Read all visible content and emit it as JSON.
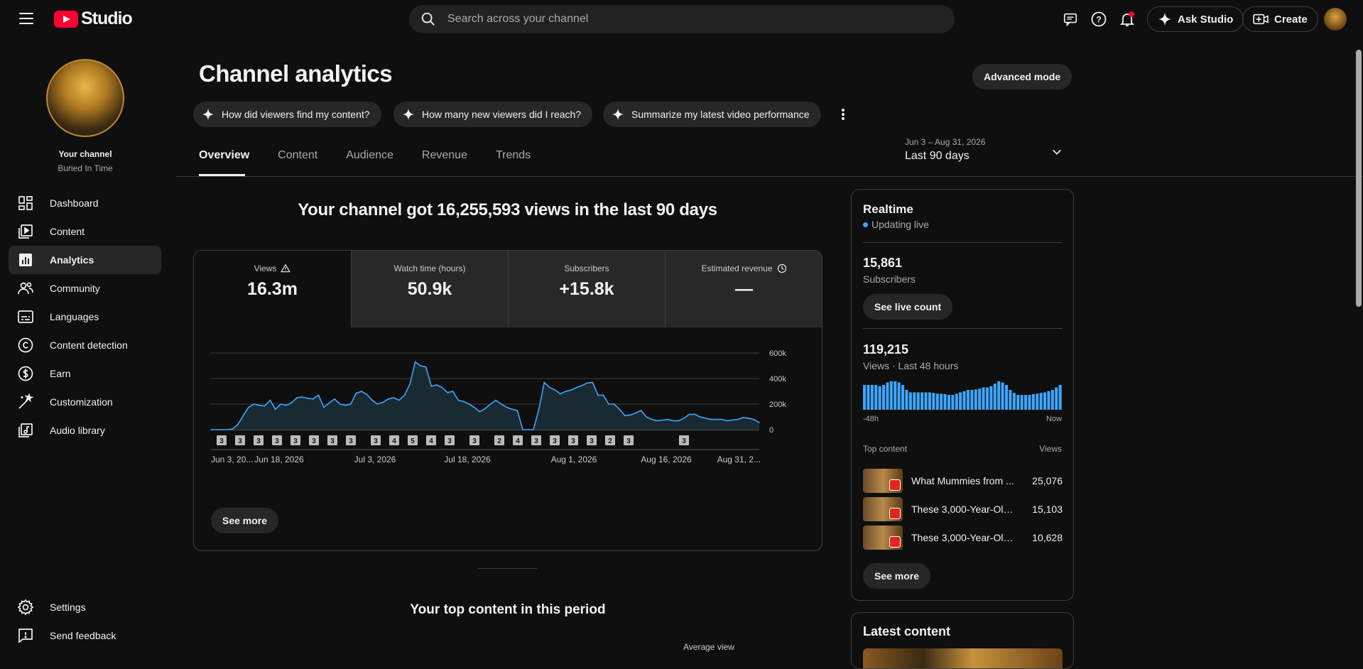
{
  "app": {
    "title": "Studio"
  },
  "search": {
    "placeholder": "Search across your channel"
  },
  "topbar": {
    "ask_label": "Ask Studio",
    "create_label": "Create"
  },
  "channel": {
    "label": "Your channel",
    "name": "Buried In Time"
  },
  "sidebar": {
    "items": [
      {
        "label": "Dashboard",
        "icon": "dashboard-icon"
      },
      {
        "label": "Content",
        "icon": "content-icon"
      },
      {
        "label": "Analytics",
        "icon": "analytics-icon",
        "active": true
      },
      {
        "label": "Community",
        "icon": "community-icon"
      },
      {
        "label": "Languages",
        "icon": "subtitles-icon"
      },
      {
        "label": "Content detection",
        "icon": "copyright-icon"
      },
      {
        "label": "Earn",
        "icon": "dollar-icon"
      },
      {
        "label": "Customization",
        "icon": "magic-wand-icon"
      },
      {
        "label": "Audio library",
        "icon": "music-library-icon"
      }
    ],
    "footer": [
      {
        "label": "Settings",
        "icon": "gear-icon"
      },
      {
        "label": "Send feedback",
        "icon": "feedback-icon"
      }
    ]
  },
  "page": {
    "title": "Channel analytics",
    "advanced_label": "Advanced mode",
    "chips": [
      "How did viewers find my content?",
      "How many new viewers did I reach?",
      "Summarize my latest video performance"
    ],
    "tabs": [
      "Overview",
      "Content",
      "Audience",
      "Revenue",
      "Trends"
    ],
    "date_range": {
      "dates": "Jun 3 – Aug 31, 2026",
      "label": "Last 90 days"
    },
    "headline": "Your channel got 16,255,593 views in the last 90 days",
    "metrics": [
      {
        "label": "Views",
        "value": "16.3m"
      },
      {
        "label": "Watch time (hours)",
        "value": "50.9k"
      },
      {
        "label": "Subscribers",
        "value": "+15.8k"
      },
      {
        "label": "Estimated revenue",
        "value": "—"
      }
    ],
    "see_more": "See more",
    "top_content_title": "Your top content in this period",
    "avg_view_label": "Average view"
  },
  "chart_data": {
    "type": "area",
    "series": [
      {
        "values": [
          0,
          0,
          0,
          0,
          5,
          40,
          110,
          175,
          200,
          190,
          185,
          230,
          160,
          200,
          190,
          210,
          250,
          255,
          245,
          240,
          270,
          175,
          210,
          240,
          200,
          190,
          200,
          285,
          300,
          275,
          230,
          200,
          215,
          240,
          250,
          230,
          270,
          355,
          530,
          500,
          490,
          340,
          350,
          330,
          290,
          300,
          230,
          220,
          200,
          175,
          140,
          165,
          200,
          230,
          200,
          175,
          160,
          150,
          0,
          0,
          0,
          160,
          370,
          330,
          310,
          280,
          300,
          310,
          330,
          345,
          365,
          370,
          270,
          270,
          200,
          200,
          160,
          110,
          115,
          130,
          150,
          100,
          80,
          70,
          75,
          80,
          70,
          70,
          90,
          120,
          120,
          100,
          90,
          80,
          80,
          80,
          70,
          75,
          80,
          95,
          90,
          80,
          55
        ]
      }
    ],
    "x_tick_labels": [
      "Jun 3, 20...",
      "Jun 18, 2026",
      "Jul 3, 2026",
      "Jul 18, 2026",
      "Aug 1, 2026",
      "Aug 16, 2026",
      "Aug 31, 2..."
    ],
    "y_tick_labels": [
      "600k",
      "400k",
      "200k",
      "0"
    ],
    "ylim": [
      0,
      600000
    ],
    "markers": [
      "3",
      "3",
      "3",
      "3",
      "3",
      "3",
      "3",
      "3",
      "3",
      "4",
      "5",
      "4",
      "3",
      "3",
      "2",
      "4",
      "3",
      "3",
      "3",
      "3",
      "2",
      "3",
      "3"
    ],
    "grid": true
  },
  "realtime": {
    "title": "Realtime",
    "status": "Updating live",
    "subs_value": "15,861",
    "subs_label": "Subscribers",
    "live_count_label": "See live count",
    "views_value": "119,215",
    "views_label": "Views · Last 48 hours",
    "bars": [
      10,
      10,
      10,
      10,
      9.5,
      10,
      11,
      11.5,
      11.5,
      11,
      10,
      8,
      7,
      7,
      7,
      7,
      7,
      7,
      6.8,
      6.5,
      6.5,
      6.3,
      6,
      6,
      6.5,
      7,
      7.5,
      8,
      8,
      8.2,
      8.5,
      9,
      9,
      9.5,
      10.5,
      11.5,
      11,
      10,
      8,
      6.8,
      6,
      6,
      6,
      6,
      6.3,
      6.5,
      6.8,
      7,
      7.5,
      8,
      9,
      10
    ],
    "axis_start": "-48h",
    "axis_end": "Now",
    "top_content_label": "Top content",
    "views_col_label": "Views",
    "top_items": [
      {
        "title": "What Mummies from ...",
        "views": "25,076"
      },
      {
        "title": "These 3,000-Year-Old ...",
        "views": "15,103"
      },
      {
        "title": "These 3,000-Year-Old ...",
        "views": "10,628"
      }
    ],
    "see_more": "See more",
    "latest_title": "Latest content"
  },
  "colors": {
    "accent": "#3ea6ff",
    "live_dot": "#3ea6ff",
    "brand": "#ff0033",
    "notify": "#ff0033"
  }
}
